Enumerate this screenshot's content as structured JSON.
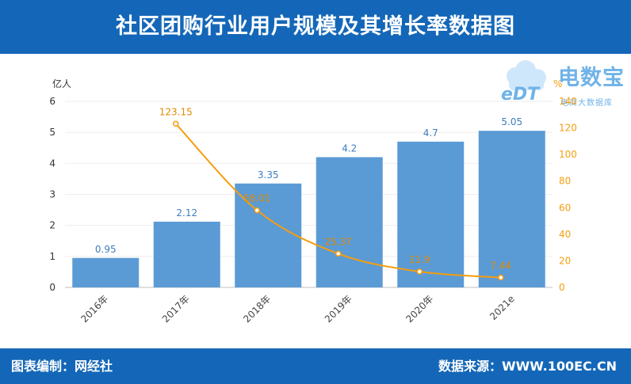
{
  "header": {
    "title": "社区团购行业用户规模及其增长率数据图"
  },
  "footer": {
    "credit": "图表编制：网经社",
    "source": "数据来源：WWW.100EC.CN"
  },
  "logo": {
    "brand": "电数宝",
    "sub": "电商大数据库",
    "mark": "eDT"
  },
  "chart_data": {
    "type": "bar",
    "categories": [
      "2016年",
      "2017年",
      "2018年",
      "2019年",
      "2020年",
      "2021e"
    ],
    "series": [
      {
        "values": [
          0.95,
          2.12,
          3.35,
          4.2,
          4.7,
          5.05
        ],
        "color": "#5b9bd5"
      },
      {
        "values": [
          null,
          123.15,
          58.01,
          25.37,
          11.9,
          7.44
        ],
        "color": "#f59d0e"
      }
    ],
    "left_axis": {
      "unit": "亿人",
      "ylim": [
        0,
        6
      ],
      "ticks": [
        0,
        1,
        2,
        3,
        4,
        5,
        6
      ]
    },
    "right_axis": {
      "unit": "%",
      "ylim": [
        0,
        140
      ],
      "ticks": [
        0,
        20,
        40,
        60,
        80,
        100,
        120,
        140
      ]
    },
    "line_type": "line",
    "grid": true
  }
}
